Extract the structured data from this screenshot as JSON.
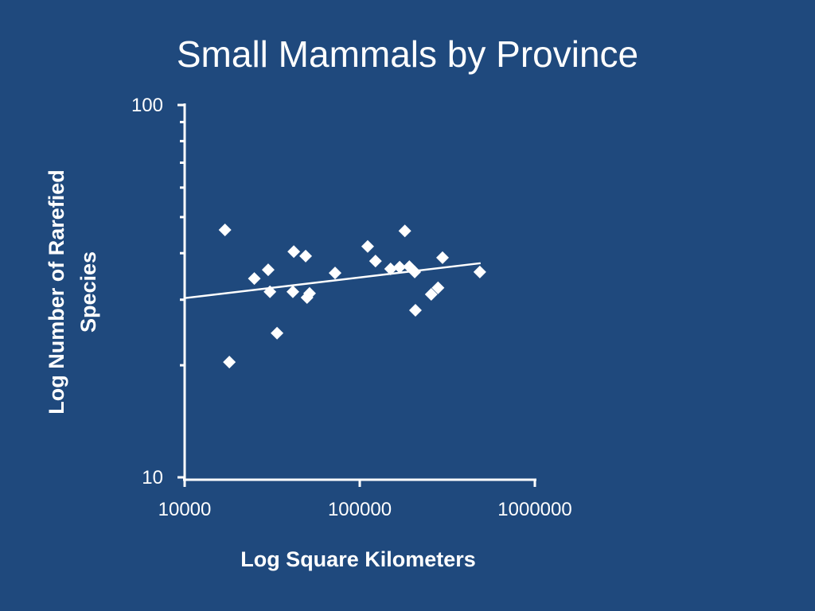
{
  "chart_data": {
    "type": "scatter",
    "title": "Small Mammals by Province",
    "xlabel": "Log Square Kilometers",
    "ylabel": [
      "Log Number of Rarefied",
      "Species"
    ],
    "xscale": "log",
    "yscale": "log",
    "xlim": [
      10000,
      1000000
    ],
    "ylim": [
      10,
      100
    ],
    "xticks": [
      10000,
      100000,
      1000000
    ],
    "yticks": [
      10,
      100
    ],
    "yminorticks": [
      20,
      30,
      40,
      50,
      60,
      70,
      80,
      90
    ],
    "color": "#ffffff",
    "x": [
      17000,
      18000,
      25000,
      30000,
      30700,
      33700,
      42000,
      41500,
      49100,
      50000,
      51700,
      72300,
      111000,
      123000,
      150000,
      169000,
      181000,
      192000,
      206000,
      208000,
      256000,
      280000,
      297000,
      485000
    ],
    "y": [
      46.2,
      20.4,
      34.2,
      36.1,
      31.5,
      24.4,
      40.4,
      31.5,
      39.3,
      30.4,
      31.2,
      35.4,
      41.7,
      38.1,
      36.3,
      36.7,
      45.9,
      36.8,
      35.6,
      28.1,
      31.0,
      32.3,
      38.9,
      35.6
    ],
    "trendline": {
      "x": [
        10000,
        490000
      ],
      "y": [
        30.3,
        37.6
      ]
    }
  }
}
